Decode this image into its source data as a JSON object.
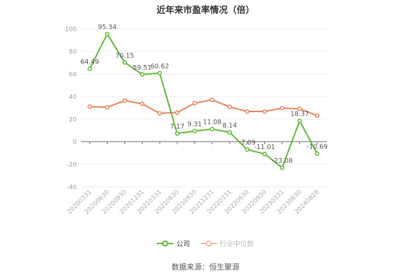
{
  "title": "近年来市盈率情况（倍）",
  "legend": {
    "company": "公司",
    "industry": "行业中位数"
  },
  "source": "数据来源：恒生聚源",
  "colors": {
    "company": "#5cb82e",
    "industry": "#e8805a",
    "grid": "#eeeeee",
    "axis": "#666666",
    "label": "#999999"
  },
  "chart_data": {
    "type": "line",
    "title": "近年来市盈率情况（倍）",
    "xlabel": "",
    "ylabel": "",
    "ylim": [
      -40,
      100
    ],
    "yticks": [
      -40,
      -20,
      0,
      20,
      40,
      60,
      80,
      100
    ],
    "grid": true,
    "legend_position": "bottom",
    "categories": [
      "20200331",
      "20200630",
      "20200930",
      "20201231",
      "20210331",
      "20210630",
      "20210930",
      "20211231",
      "20220331",
      "20220630",
      "20220930",
      "20230331",
      "20230630",
      "20240828"
    ],
    "series": [
      {
        "name": "公司",
        "values": [
          64.49,
          95.34,
          70.15,
          59.51,
          60.62,
          7.17,
          9.31,
          11.08,
          8.14,
          -7.09,
          -11.01,
          -23.08,
          18.37,
          -10.69
        ],
        "labels": [
          "64.49",
          "95.34",
          "70.15",
          "59.51",
          "60.62",
          "7.17",
          "9.31",
          "11.08",
          "8.14",
          "-7.09",
          "-11.01",
          "-23.08",
          "18.37",
          "-10.69"
        ]
      },
      {
        "name": "行业中位数",
        "values": [
          31.0,
          30.4,
          36.3,
          33.5,
          25.0,
          25.7,
          34.0,
          37.0,
          30.7,
          26.7,
          26.7,
          29.7,
          29.0,
          23.0
        ]
      }
    ]
  }
}
